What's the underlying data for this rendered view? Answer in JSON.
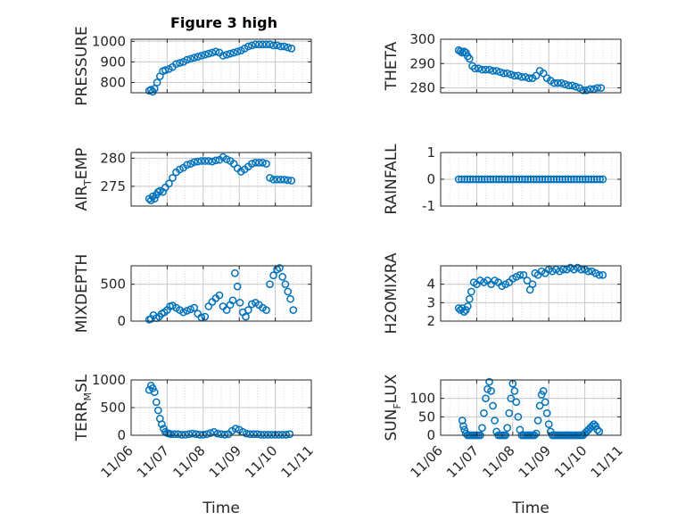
{
  "figure_title": "Figure 3 high",
  "colors": {
    "marker": "#0072BD",
    "axis": "#262626",
    "grid": "#c8c8c8"
  },
  "chart_data": [
    {
      "type": "scatter",
      "title": "Figure 3 high",
      "xlabel": "",
      "ylabel": "PRESSURE",
      "ylim": [
        750,
        1010
      ],
      "yticks": [
        800,
        900,
        1000
      ],
      "xticks": [],
      "grid": true,
      "x": [
        6.5,
        6.55,
        6.6,
        6.65,
        6.72,
        6.8,
        6.88,
        6.95,
        7.05,
        7.15,
        7.25,
        7.35,
        7.45,
        7.55,
        7.65,
        7.75,
        7.85,
        7.95,
        8.05,
        8.15,
        8.25,
        8.35,
        8.45,
        8.55,
        8.65,
        8.75,
        8.85,
        8.95,
        9.05,
        9.15,
        9.25,
        9.35,
        9.45,
        9.55,
        9.65,
        9.75,
        9.85,
        9.95,
        10.05,
        10.15,
        10.25,
        10.35,
        10.45
      ],
      "y": [
        760,
        765,
        755,
        770,
        800,
        830,
        855,
        860,
        865,
        875,
        890,
        895,
        900,
        910,
        915,
        920,
        925,
        930,
        935,
        940,
        945,
        950,
        945,
        930,
        935,
        940,
        945,
        950,
        955,
        965,
        975,
        980,
        985,
        985,
        985,
        985,
        985,
        980,
        980,
        975,
        975,
        970,
        965
      ]
    },
    {
      "type": "scatter",
      "xlabel": "",
      "ylabel": "THETA",
      "ylim": [
        278,
        300
      ],
      "yticks": [
        280,
        290,
        300
      ],
      "xticks": [],
      "grid": true,
      "x": [
        6.5,
        6.55,
        6.6,
        6.65,
        6.7,
        6.75,
        6.8,
        6.88,
        6.95,
        7.05,
        7.15,
        7.25,
        7.35,
        7.45,
        7.55,
        7.65,
        7.75,
        7.85,
        7.95,
        8.05,
        8.15,
        8.25,
        8.35,
        8.45,
        8.55,
        8.65,
        8.75,
        8.85,
        8.95,
        9.05,
        9.15,
        9.25,
        9.35,
        9.45,
        9.55,
        9.65,
        9.75,
        9.85,
        9.95,
        10.05,
        10.15,
        10.25,
        10.35,
        10.45
      ],
      "y": [
        295.5,
        295,
        294.5,
        295,
        294.5,
        293,
        292,
        289,
        288,
        288,
        287.5,
        287.5,
        287.5,
        287,
        287,
        286.5,
        286,
        286,
        285.5,
        285,
        285,
        284.5,
        284.5,
        284,
        284,
        285,
        287,
        286,
        284,
        283,
        282,
        282,
        282,
        281.5,
        281,
        281,
        280.5,
        280,
        279,
        279,
        279.5,
        279.5,
        280,
        280
      ]
    },
    {
      "type": "scatter",
      "xlabel": "",
      "ylabel": "AIR_TEMP",
      "ylim": [
        271.5,
        281
      ],
      "yticks": [
        275,
        280
      ],
      "xticks": [],
      "grid": true,
      "x": [
        6.5,
        6.55,
        6.6,
        6.65,
        6.7,
        6.75,
        6.8,
        6.88,
        6.95,
        7.05,
        7.15,
        7.25,
        7.35,
        7.45,
        7.55,
        7.65,
        7.75,
        7.85,
        7.95,
        8.05,
        8.15,
        8.25,
        8.35,
        8.45,
        8.55,
        8.65,
        8.75,
        8.85,
        8.95,
        9.05,
        9.15,
        9.25,
        9.35,
        9.45,
        9.55,
        9.65,
        9.75,
        9.85,
        9.95,
        10.05,
        10.15,
        10.25,
        10.35,
        10.45
      ],
      "y": [
        272.8,
        272.5,
        273.2,
        272.8,
        273.5,
        274,
        274.2,
        274,
        274.8,
        275.5,
        276.5,
        277.5,
        278,
        278.3,
        278.8,
        279,
        279.3,
        279.4,
        279.5,
        279.5,
        279.5,
        279.4,
        279.6,
        279.7,
        280.2,
        279.8,
        279.5,
        279,
        278.2,
        277.6,
        278,
        278.5,
        279,
        279.2,
        279.2,
        279.2,
        279,
        276.5,
        276.2,
        276.2,
        276.2,
        276.2,
        276.1,
        276
      ]
    },
    {
      "type": "scatter",
      "xlabel": "",
      "ylabel": "RAINFALL",
      "ylim": [
        -1,
        1
      ],
      "yticks": [
        -1,
        0,
        1
      ],
      "xticks": [],
      "grid": true,
      "x": [
        6.5,
        6.58,
        6.66,
        6.74,
        6.82,
        6.9,
        6.98,
        7.06,
        7.14,
        7.22,
        7.3,
        7.38,
        7.46,
        7.54,
        7.62,
        7.7,
        7.78,
        7.86,
        7.94,
        8.02,
        8.1,
        8.18,
        8.26,
        8.34,
        8.42,
        8.5,
        8.58,
        8.66,
        8.74,
        8.82,
        8.9,
        8.98,
        9.06,
        9.14,
        9.22,
        9.3,
        9.38,
        9.46,
        9.54,
        9.62,
        9.7,
        9.78,
        9.86,
        9.94,
        10.02,
        10.1,
        10.18,
        10.26,
        10.34,
        10.42,
        10.5
      ],
      "y": [
        0,
        0,
        0,
        0,
        0,
        0,
        0,
        0,
        0,
        0,
        0,
        0,
        0,
        0,
        0,
        0,
        0,
        0,
        0,
        0,
        0,
        0,
        0,
        0,
        0,
        0,
        0,
        0,
        0,
        0,
        0,
        0,
        0,
        0,
        0,
        0,
        0,
        0,
        0,
        0,
        0,
        0,
        0,
        0,
        0,
        0,
        0,
        0,
        0,
        0,
        0
      ]
    },
    {
      "type": "scatter",
      "xlabel": "",
      "ylabel": "MIXDEPTH",
      "ylim": [
        0,
        750
      ],
      "yticks": [
        0,
        500
      ],
      "xticks": [],
      "grid": true,
      "x": [
        6.5,
        6.55,
        6.62,
        6.7,
        6.78,
        6.85,
        6.92,
        7.0,
        7.08,
        7.15,
        7.25,
        7.35,
        7.45,
        7.55,
        7.65,
        7.75,
        7.85,
        7.95,
        8.05,
        8.15,
        8.25,
        8.35,
        8.45,
        8.55,
        8.65,
        8.75,
        8.82,
        8.88,
        8.95,
        9.02,
        9.1,
        9.18,
        9.25,
        9.35,
        9.45,
        9.55,
        9.65,
        9.75,
        9.85,
        9.95,
        10.05,
        10.12,
        10.2,
        10.28,
        10.35,
        10.42,
        10.5
      ],
      "y": [
        20,
        30,
        80,
        40,
        60,
        100,
        120,
        150,
        200,
        210,
        180,
        150,
        120,
        140,
        160,
        180,
        100,
        50,
        60,
        200,
        260,
        310,
        350,
        200,
        150,
        220,
        280,
        650,
        470,
        250,
        120,
        60,
        150,
        230,
        250,
        220,
        180,
        150,
        500,
        620,
        700,
        720,
        600,
        500,
        400,
        300,
        150
      ]
    },
    {
      "type": "scatter",
      "xlabel": "",
      "ylabel": "H2OMIXRA",
      "ylim": [
        2,
        5
      ],
      "yticks": [
        2,
        3,
        4
      ],
      "xticks": [],
      "grid": true,
      "x": [
        6.5,
        6.55,
        6.6,
        6.65,
        6.7,
        6.75,
        6.8,
        6.85,
        6.92,
        7.0,
        7.1,
        7.2,
        7.3,
        7.4,
        7.5,
        7.6,
        7.7,
        7.8,
        7.9,
        8.0,
        8.1,
        8.2,
        8.3,
        8.4,
        8.48,
        8.55,
        8.62,
        8.7,
        8.8,
        8.9,
        9.0,
        9.1,
        9.2,
        9.3,
        9.4,
        9.5,
        9.6,
        9.7,
        9.8,
        9.9,
        10.0,
        10.1,
        10.2,
        10.3,
        10.4,
        10.5
      ],
      "y": [
        2.7,
        2.6,
        2.7,
        2.5,
        2.6,
        2.8,
        3.2,
        3.6,
        4.1,
        4.0,
        4.2,
        4.1,
        4.2,
        4.0,
        4.2,
        4.1,
        3.9,
        4.0,
        4.1,
        4.3,
        4.4,
        4.5,
        4.5,
        4.2,
        3.7,
        4.0,
        4.6,
        4.5,
        4.7,
        4.6,
        4.8,
        4.7,
        4.8,
        4.7,
        4.8,
        4.8,
        4.9,
        4.8,
        4.9,
        4.8,
        4.8,
        4.7,
        4.7,
        4.6,
        4.5,
        4.5
      ]
    },
    {
      "type": "scatter",
      "xlabel": "Time",
      "ylabel": "TERR_MSL",
      "ylim": [
        0,
        1000
      ],
      "yticks": [
        0,
        500,
        1000
      ],
      "xticks": [
        "11/06",
        "11/07",
        "11/08",
        "11/09",
        "11/10",
        "11/11"
      ],
      "grid": true,
      "x": [
        6.5,
        6.55,
        6.6,
        6.65,
        6.7,
        6.75,
        6.8,
        6.85,
        6.9,
        6.95,
        7.0,
        7.05,
        7.1,
        7.2,
        7.3,
        7.4,
        7.5,
        7.6,
        7.7,
        7.8,
        7.9,
        8.0,
        8.1,
        8.2,
        8.3,
        8.4,
        8.5,
        8.6,
        8.7,
        8.8,
        8.9,
        9.0,
        9.1,
        9.2,
        9.3,
        9.4,
        9.5,
        9.6,
        9.7,
        9.8,
        9.9,
        10.0,
        10.1,
        10.2,
        10.3,
        10.4
      ],
      "y": [
        820,
        900,
        850,
        780,
        600,
        450,
        300,
        200,
        120,
        60,
        40,
        30,
        20,
        20,
        20,
        10,
        10,
        20,
        30,
        20,
        10,
        10,
        20,
        40,
        60,
        30,
        20,
        10,
        20,
        80,
        120,
        100,
        60,
        30,
        20,
        20,
        20,
        10,
        10,
        10,
        10,
        10,
        10,
        10,
        10,
        20
      ]
    },
    {
      "type": "scatter",
      "xlabel": "Time",
      "ylabel": "SUN_FLUX",
      "ylim": [
        0,
        150
      ],
      "yticks": [
        0,
        50,
        100
      ],
      "xticks": [
        "11/06",
        "11/07",
        "11/08",
        "11/09",
        "11/10",
        "11/11"
      ],
      "grid": true,
      "x": [
        6.6,
        6.63,
        6.66,
        6.7,
        6.75,
        6.8,
        6.85,
        6.9,
        6.95,
        7.0,
        7.05,
        7.1,
        7.15,
        7.2,
        7.25,
        7.3,
        7.35,
        7.4,
        7.45,
        7.5,
        7.55,
        7.6,
        7.65,
        7.7,
        7.75,
        7.8,
        7.85,
        7.9,
        7.95,
        8.0,
        8.05,
        8.1,
        8.15,
        8.2,
        8.25,
        8.3,
        8.35,
        8.4,
        8.45,
        8.5,
        8.55,
        8.6,
        8.65,
        8.7,
        8.75,
        8.8,
        8.85,
        8.9,
        8.95,
        9.0,
        9.05,
        9.1,
        9.15,
        9.2,
        9.25,
        9.3,
        9.35,
        9.4,
        9.45,
        9.5,
        9.55,
        9.6,
        9.65,
        9.7,
        9.75,
        9.8,
        9.85,
        9.9,
        9.95,
        10.0,
        10.05,
        10.1,
        10.15,
        10.2,
        10.25,
        10.3,
        10.35,
        10.4
      ],
      "y": [
        40,
        25,
        15,
        5,
        0,
        0,
        0,
        0,
        0,
        0,
        0,
        0,
        20,
        60,
        100,
        125,
        145,
        120,
        80,
        40,
        10,
        0,
        0,
        0,
        0,
        0,
        20,
        60,
        100,
        140,
        120,
        90,
        50,
        15,
        0,
        0,
        0,
        0,
        0,
        0,
        0,
        0,
        5,
        40,
        80,
        110,
        120,
        90,
        60,
        30,
        10,
        0,
        0,
        0,
        0,
        0,
        0,
        0,
        0,
        0,
        0,
        0,
        0,
        0,
        0,
        0,
        0,
        0,
        0,
        5,
        10,
        15,
        20,
        25,
        30,
        25,
        15,
        10
      ]
    }
  ]
}
